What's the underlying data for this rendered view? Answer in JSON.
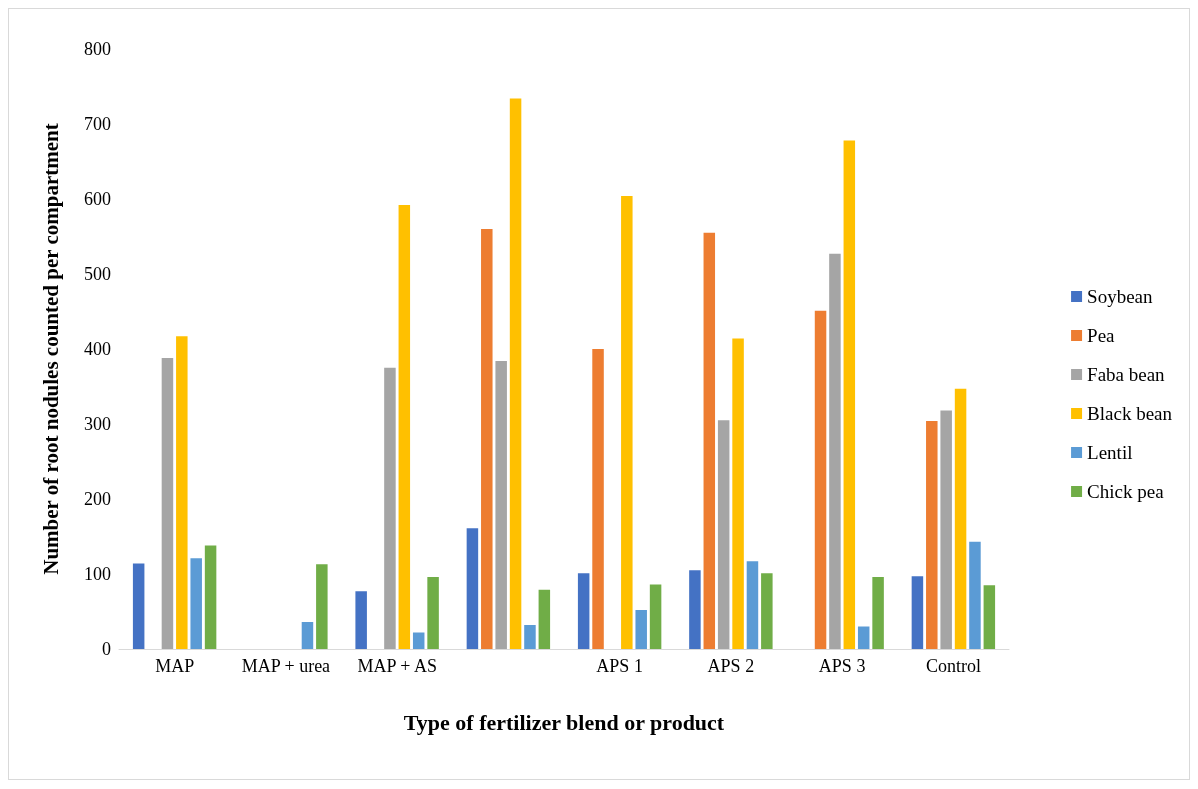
{
  "chart_data": {
    "type": "bar",
    "xlabel": "Type of fertilizer blend or product",
    "ylabel": "Number of root nodules counted per compartment",
    "categories": [
      "MAP",
      "MAP + urea",
      "MAP + AS",
      null,
      "APS 1",
      "APS 2",
      "APS 3",
      "Control"
    ],
    "series": [
      {
        "name": "Soybean",
        "color": "#4472c4",
        "values": [
          114,
          0,
          77,
          161,
          101,
          105,
          0,
          97
        ]
      },
      {
        "name": "Pea",
        "color": "#ed7d31",
        "values": [
          0,
          0,
          0,
          560,
          400,
          555,
          451,
          304
        ]
      },
      {
        "name": "Faba bean",
        "color": "#a5a5a5",
        "values": [
          388,
          0,
          375,
          384,
          0,
          305,
          527,
          318
        ]
      },
      {
        "name": "Black bean",
        "color": "#ffc000",
        "values": [
          417,
          0,
          592,
          734,
          604,
          414,
          678,
          347
        ]
      },
      {
        "name": "Lentil",
        "color": "#5b9bd5",
        "values": [
          121,
          36,
          22,
          32,
          52,
          117,
          30,
          143
        ]
      },
      {
        "name": "Chick pea",
        "color": "#70ad47",
        "values": [
          138,
          113,
          96,
          79,
          86,
          101,
          96,
          85
        ]
      }
    ],
    "ylim": [
      0,
      800
    ],
    "yticks": [
      0,
      100,
      200,
      300,
      400,
      500,
      600,
      700,
      800
    ],
    "grid": false,
    "legend": "right"
  }
}
